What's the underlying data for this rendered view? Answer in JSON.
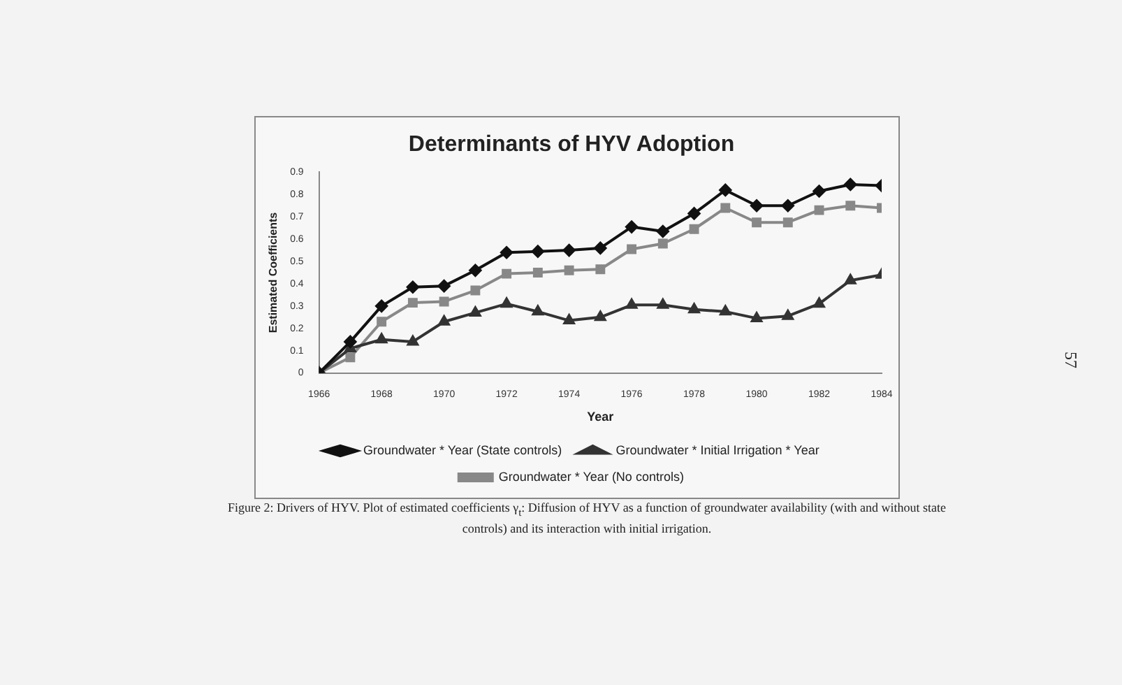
{
  "chart_data": {
    "type": "line",
    "title": "Determinants of HYV Adoption",
    "xlabel": "Year",
    "ylabel": "Estimated Coefficients",
    "x": [
      1966,
      1967,
      1968,
      1969,
      1970,
      1971,
      1972,
      1973,
      1974,
      1975,
      1976,
      1977,
      1978,
      1979,
      1980,
      1981,
      1982,
      1983,
      1984
    ],
    "xlim": [
      1966,
      1984
    ],
    "xticks": [
      1966,
      1968,
      1970,
      1972,
      1974,
      1976,
      1978,
      1980,
      1982,
      1984
    ],
    "ylim": [
      0,
      0.9
    ],
    "yticks": [
      0,
      0.1,
      0.2,
      0.3,
      0.4,
      0.5,
      0.6,
      0.7,
      0.8,
      0.9
    ],
    "series": [
      {
        "name": "Groundwater * Year (State controls)",
        "color": "#111111",
        "marker": "diamond",
        "values": [
          0,
          0.14,
          0.3,
          0.385,
          0.39,
          0.46,
          0.54,
          0.545,
          0.55,
          0.56,
          0.655,
          0.635,
          0.715,
          0.82,
          0.75,
          0.75,
          0.815,
          0.845,
          0.84
        ]
      },
      {
        "name": "Groundwater * Initial Irrigation * Year",
        "color": "#333333",
        "marker": "triangle",
        "values": [
          0,
          0.11,
          0.15,
          0.14,
          0.23,
          0.27,
          0.31,
          0.275,
          0.235,
          0.25,
          0.305,
          0.305,
          0.285,
          0.275,
          0.245,
          0.255,
          0.31,
          0.415,
          0.44
        ]
      },
      {
        "name": "Groundwater * Year (No controls)",
        "color": "#888888",
        "marker": "square",
        "values": [
          0,
          0.07,
          0.23,
          0.315,
          0.32,
          0.37,
          0.445,
          0.45,
          0.46,
          0.465,
          0.555,
          0.58,
          0.645,
          0.74,
          0.675,
          0.675,
          0.73,
          0.75,
          0.74
        ]
      }
    ],
    "grid": false,
    "legend": "bottom",
    "line_style": "solid",
    "annotations": [
      "Figure 2: Drivers of HYV. Plot of estimated coefficients γ$_{t}$: Diffusion of HYV as a function of groundwater availability (with and without state controls) and its interaction with initial irrigation.",
      "57"
    ]
  }
}
